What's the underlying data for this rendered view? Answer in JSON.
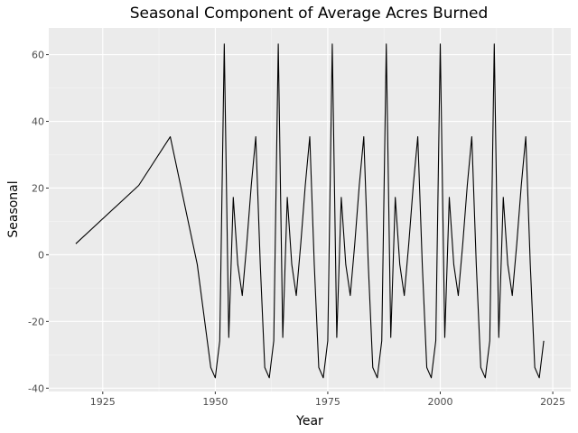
{
  "chart_data": {
    "type": "line",
    "title": "Seasonal Component of Average Acres Burned",
    "xlabel": "Year",
    "ylabel": "Seasonal",
    "xlim": [
      1913,
      2029
    ],
    "ylim": [
      -41,
      68
    ],
    "x_ticks": [
      1925,
      1950,
      1975,
      2000,
      2025
    ],
    "y_ticks": [
      -40,
      -20,
      0,
      20,
      40,
      60
    ],
    "x_tick_labels": [
      "1925",
      "1950",
      "1975",
      "2000",
      "2025"
    ],
    "y_tick_labels": [
      "-40",
      "-20",
      "0",
      "20",
      "40",
      "60"
    ],
    "grid": true,
    "legend": "none",
    "series": [
      {
        "color": "#000000",
        "x": [
          1919,
          1933,
          1940,
          1946,
          1949,
          1950,
          1951,
          1952,
          1953,
          1954,
          1955,
          1956,
          1957,
          1958,
          1959,
          1960,
          1961,
          1962,
          1963,
          1964,
          1965,
          1966,
          1967,
          1968,
          1969,
          1970,
          1971,
          1972,
          1973,
          1974,
          1975,
          1976,
          1977,
          1978,
          1979,
          1980,
          1981,
          1982,
          1983,
          1984,
          1985,
          1986,
          1987,
          1988,
          1989,
          1990,
          1991,
          1992,
          1993,
          1994,
          1995,
          1996,
          1997,
          1998,
          1999,
          2000,
          2001,
          2002,
          2003,
          2004,
          2005,
          2006,
          2007,
          2008,
          2009,
          2010,
          2011,
          2012,
          2013,
          2014,
          2015,
          2016,
          2017,
          2018,
          2019,
          2020,
          2021,
          2022,
          2023
        ],
        "y": [
          3.3,
          20.8,
          35.4,
          -2.9,
          -33.8,
          -36.9,
          -25.8,
          63.2,
          -24.8,
          17.2,
          -2.9,
          -12.2,
          3.3,
          20.8,
          35.4,
          -2.9,
          -33.8,
          -36.9,
          -25.8,
          63.2,
          -24.8,
          17.2,
          -2.9,
          -12.2,
          3.3,
          20.8,
          35.4,
          -2.9,
          -33.8,
          -36.9,
          -25.8,
          63.2,
          -24.8,
          17.2,
          -2.9,
          -12.2,
          3.3,
          20.8,
          35.4,
          -2.9,
          -33.8,
          -36.9,
          -25.8,
          63.2,
          -24.8,
          17.2,
          -2.9,
          -12.2,
          3.3,
          20.8,
          35.4,
          -2.9,
          -33.8,
          -36.9,
          -25.8,
          63.2,
          -24.8,
          17.2,
          -2.9,
          -12.2,
          3.3,
          20.8,
          35.4,
          -2.9,
          -33.8,
          -36.9,
          -25.8,
          63.2,
          -24.8,
          17.2,
          -2.9,
          -12.2,
          3.3,
          20.8,
          35.4,
          -2.9,
          -33.8,
          -36.9,
          -25.8
        ]
      }
    ]
  }
}
